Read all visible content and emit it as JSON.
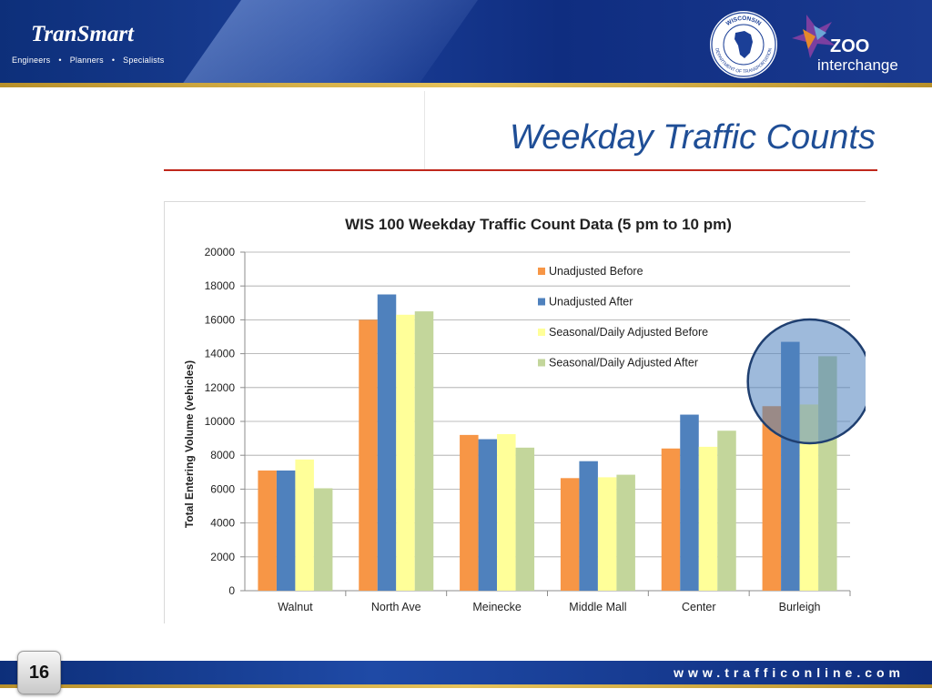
{
  "header": {
    "brand": "TranSmart",
    "tagline_items": [
      "Engineers",
      "Planners",
      "Specialists"
    ],
    "tagline_separator": "•",
    "seal_text_top": "WISCONSIN",
    "seal_text_bottom": "DEPARTMENT OF TRANSPORTATION",
    "zoo_word": "ZOO",
    "zoo_sub": "interchange"
  },
  "slide": {
    "title": "Weekday Traffic Counts"
  },
  "chart_data": {
    "type": "bar",
    "title": "WIS 100 Weekday Traffic Count Data (5 pm to 10 pm)",
    "xlabel": "",
    "ylabel": "Total Entering Volume (vehicles)",
    "ylim": [
      0,
      20000
    ],
    "yticks": [
      0,
      2000,
      4000,
      6000,
      8000,
      10000,
      12000,
      14000,
      16000,
      18000,
      20000
    ],
    "grid": true,
    "legend_position": "top-right",
    "categories": [
      "Walnut",
      "North Ave",
      "Meinecke",
      "Middle Mall",
      "Center",
      "Burleigh"
    ],
    "series": [
      {
        "name": "Unadjusted Before",
        "color": "#f79646",
        "values": [
          7100,
          16000,
          9200,
          6650,
          8400,
          10900
        ]
      },
      {
        "name": "Unadjusted After",
        "color": "#4f81bd",
        "values": [
          7100,
          17500,
          8950,
          7650,
          10400,
          14700
        ]
      },
      {
        "name": "Seasonal/Daily Adjusted Before",
        "color": "#ffff99",
        "values": [
          7750,
          16300,
          9250,
          6700,
          8500,
          11000
        ]
      },
      {
        "name": "Seasonal/Daily Adjusted After",
        "color": "#c3d69b",
        "values": [
          6050,
          16500,
          8450,
          6850,
          9450,
          13850
        ]
      }
    ],
    "annotation": "highlight circle over Burleigh"
  },
  "footer": {
    "page_number": "16",
    "website": "www.trafficonline.com"
  },
  "colors": {
    "header_blue": "#1b3f97",
    "title_blue": "#1f4e96",
    "rule_red": "#c0281c",
    "gold": "#e6c25a"
  }
}
